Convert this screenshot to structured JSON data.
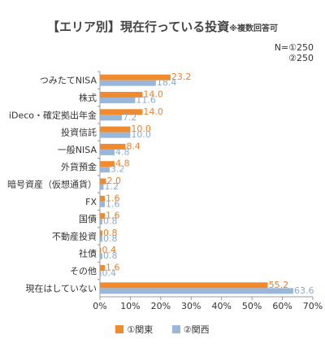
{
  "title": "【エリア別】現在行っている投資",
  "title_note": "※複数回答可",
  "sample_n": [
    "N=①250",
    "②250"
  ],
  "chart_data": {
    "type": "bar",
    "orientation": "horizontal",
    "title": "【エリア別】現在行っている投資",
    "categories": [
      "つみたてNISA",
      "株式",
      "iDeco・確定拠出年金",
      "投資信託",
      "一般NISA",
      "外貨預金",
      "暗号資産（仮想通貨）",
      "FX",
      "国債",
      "不動産投資",
      "社債",
      "その他",
      "現在はしていない"
    ],
    "series": [
      {
        "name": "①関東",
        "color": "#f08a2c",
        "values": [
          23.2,
          14.0,
          14.0,
          10.0,
          8.4,
          4.8,
          2.0,
          1.6,
          1.6,
          0.8,
          0.4,
          1.6,
          55.2
        ]
      },
      {
        "name": "②関西",
        "color": "#9bb7d7",
        "values": [
          18.4,
          11.6,
          7.2,
          10.0,
          4.8,
          3.2,
          1.2,
          1.6,
          0.8,
          0.8,
          0.8,
          0.4,
          63.6
        ]
      }
    ],
    "data_labels": [
      [
        "23.2",
        "14.0",
        "14.0",
        "10.0",
        "8.4",
        "4.8",
        "2.0",
        "1.6",
        "1.6",
        "0.8",
        "0.4",
        "1.6",
        "55.2"
      ],
      [
        "18.4",
        "11.6",
        "7.2",
        "10.0",
        "4.8",
        "3.2",
        "1.2",
        "1.6",
        "0.8",
        "0.8",
        "0.8",
        "0.4",
        "63.6"
      ]
    ],
    "xlim": [
      0,
      70
    ],
    "xticks": [
      0,
      10,
      20,
      30,
      40,
      50,
      60,
      70
    ],
    "xtick_labels": [
      "0%",
      "10%",
      "20%",
      "30%",
      "40%",
      "50%",
      "60%",
      "70%"
    ],
    "grid": false,
    "legend_position": "bottom"
  }
}
